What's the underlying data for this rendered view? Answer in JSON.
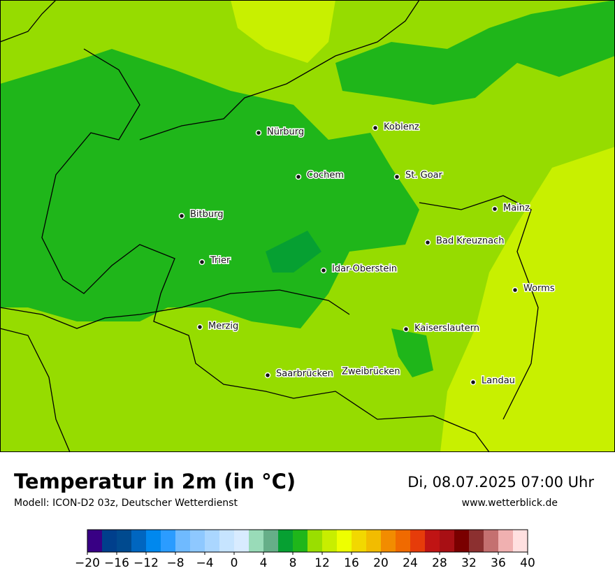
{
  "map": {
    "cities": [
      "Nürburg",
      "Koblenz",
      "Cochem",
      "St. Goar",
      "Bitburg",
      "Mainz",
      "Bad Kreuznach",
      "Trier",
      "Idar-Oberstein",
      "Worms",
      "Merzig",
      "Kaiserslautern",
      "Saarbrücken",
      "Zweibrücken",
      "Landau"
    ]
  },
  "legend": {
    "title": "Temperatur in 2m (in °C)",
    "model": "Modell: ICON-D2 03z, Deutscher Wetterdienst",
    "datetime": "Di, 08.07.2025 07:00 Uhr",
    "website": "www.wetterblick.de",
    "colorbar": {
      "lim": [
        -20,
        40
      ],
      "colors": [
        "#380084",
        "#003f8c",
        "#004a8f",
        "#0066c0",
        "#0088ee",
        "#2b9cff",
        "#6fbaff",
        "#8ec8ff",
        "#aad6ff",
        "#c6e4ff",
        "#d8ebff",
        "#99dbb8",
        "#66ae88",
        "#06a032",
        "#1fb61a",
        "#9ade00",
        "#c8ee00",
        "#eeff00",
        "#f2d800",
        "#f2bc00",
        "#f28c00",
        "#f06a00",
        "#e63c0a",
        "#c01414",
        "#a80f14",
        "#7a0000",
        "#8c3030",
        "#c47070",
        "#f0b0b0",
        "#ffe0e0"
      ],
      "ticks": [
        {
          "value": -20,
          "label": "−20"
        },
        {
          "value": -16,
          "label": "−16"
        },
        {
          "value": -12,
          "label": "−12"
        },
        {
          "value": -8,
          "label": "−8"
        },
        {
          "value": -4,
          "label": "−4"
        },
        0,
        4,
        8,
        12,
        16,
        20,
        24,
        28,
        32,
        36,
        40
      ]
    }
  }
}
